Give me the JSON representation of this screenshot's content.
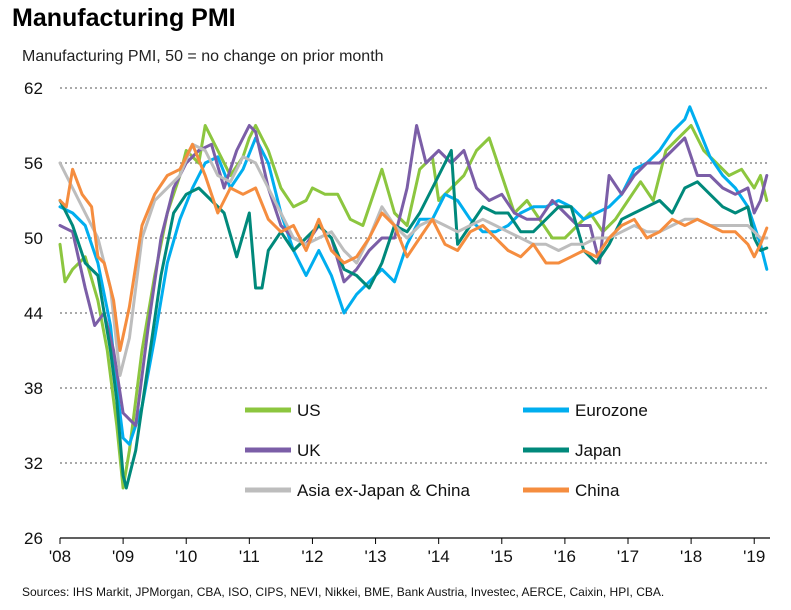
{
  "chart_data": {
    "type": "line",
    "title": "Manufacturing PMI",
    "subtitle": "Manufacturing PMI, 50 = no change on prior month",
    "source": "Sources: IHS Markit, JPMorgan, CBA, ISO, CIPS, NEVI, Nikkei, BME, Bank Austria, Investec, AERCE, Caixin, HPI, CBA.",
    "ylim": [
      26,
      62
    ],
    "yticks": [
      26,
      32,
      38,
      44,
      50,
      56,
      62
    ],
    "xlim": [
      2008.0,
      2019.25
    ],
    "xticks": [
      {
        "value": 2008,
        "label": "'08"
      },
      {
        "value": 2009,
        "label": "'09"
      },
      {
        "value": 2010,
        "label": "'10"
      },
      {
        "value": 2011,
        "label": "'11"
      },
      {
        "value": 2012,
        "label": "'12"
      },
      {
        "value": 2013,
        "label": "'13"
      },
      {
        "value": 2014,
        "label": "'14"
      },
      {
        "value": 2015,
        "label": "'15"
      },
      {
        "value": 2016,
        "label": "'16"
      },
      {
        "value": 2017,
        "label": "'17"
      },
      {
        "value": 2018,
        "label": "'18"
      },
      {
        "value": 2019,
        "label": "'19"
      }
    ],
    "grid": "horizontal",
    "legend_position": "inside, lower center",
    "series": [
      {
        "name": "US",
        "color": "#8cc63f",
        "x": [
          2008.0,
          2008.08,
          2008.2,
          2008.4,
          2008.6,
          2008.75,
          2008.9,
          2009.0,
          2009.1,
          2009.3,
          2009.5,
          2009.7,
          2009.9,
          2010.0,
          2010.2,
          2010.3,
          2010.5,
          2010.7,
          2010.9,
          2011.0,
          2011.1,
          2011.3,
          2011.5,
          2011.7,
          2011.9,
          2012.0,
          2012.2,
          2012.4,
          2012.6,
          2012.8,
          2013.0,
          2013.1,
          2013.3,
          2013.5,
          2013.7,
          2013.9,
          2014.0,
          2014.2,
          2014.4,
          2014.6,
          2014.8,
          2015.0,
          2015.2,
          2015.4,
          2015.6,
          2015.8,
          2016.0,
          2016.2,
          2016.4,
          2016.6,
          2016.8,
          2017.0,
          2017.2,
          2017.4,
          2017.6,
          2017.8,
          2018.0,
          2018.2,
          2018.4,
          2018.6,
          2018.8,
          2019.0,
          2019.1,
          2019.2
        ],
        "values": [
          49.5,
          46.5,
          47.5,
          48.5,
          45,
          41,
          35,
          30,
          33,
          41,
          47,
          52,
          55,
          57,
          56,
          59,
          57,
          55,
          56.5,
          58,
          59,
          57,
          54,
          52.5,
          53,
          54,
          53.5,
          53.5,
          51.5,
          51,
          54,
          55.5,
          52,
          51,
          55.5,
          56.5,
          53,
          54,
          55,
          57,
          58,
          55,
          52,
          53,
          51.5,
          50,
          50,
          51,
          52,
          50.5,
          51.5,
          53,
          54.5,
          53,
          57,
          58,
          59,
          57,
          56,
          55,
          55.5,
          54,
          55,
          53
        ]
      },
      {
        "name": "Eurozone",
        "color": "#00aeef",
        "x": [
          2008.0,
          2008.2,
          2008.4,
          2008.6,
          2008.8,
          2008.9,
          2009.0,
          2009.1,
          2009.3,
          2009.5,
          2009.7,
          2009.9,
          2010.1,
          2010.3,
          2010.5,
          2010.7,
          2010.9,
          2011.1,
          2011.3,
          2011.5,
          2011.7,
          2011.9,
          2012.1,
          2012.3,
          2012.5,
          2012.7,
          2012.9,
          2013.1,
          2013.3,
          2013.5,
          2013.7,
          2013.9,
          2014.1,
          2014.3,
          2014.5,
          2014.7,
          2014.9,
          2015.1,
          2015.3,
          2015.5,
          2015.7,
          2015.9,
          2016.1,
          2016.3,
          2016.5,
          2016.7,
          2016.9,
          2017.1,
          2017.3,
          2017.5,
          2017.7,
          2017.9,
          2017.98,
          2018.1,
          2018.3,
          2018.5,
          2018.7,
          2018.9,
          2019.0,
          2019.1,
          2019.2
        ],
        "values": [
          52.5,
          52,
          51,
          48,
          43,
          38,
          34,
          33.5,
          36.5,
          42,
          48,
          51.5,
          54,
          56,
          56.5,
          54,
          55.5,
          58,
          56,
          52,
          49,
          47,
          49,
          47,
          44,
          45.5,
          46.5,
          47.5,
          46.5,
          49.5,
          51.5,
          51.5,
          53.5,
          53,
          51.5,
          50.5,
          50.5,
          51,
          52,
          52.5,
          52.5,
          53,
          52.5,
          51.5,
          52,
          52.5,
          53.5,
          55.5,
          56,
          57,
          58.5,
          59.5,
          60.5,
          59,
          56.5,
          55,
          54,
          52.5,
          51,
          49.5,
          47.5
        ]
      },
      {
        "name": "UK",
        "color": "#7b5ea7",
        "x": [
          2008.0,
          2008.2,
          2008.4,
          2008.55,
          2008.7,
          2008.85,
          2009.0,
          2009.1,
          2009.2,
          2009.4,
          2009.6,
          2009.8,
          2010.0,
          2010.2,
          2010.4,
          2010.6,
          2010.8,
          2011.0,
          2011.1,
          2011.3,
          2011.5,
          2011.7,
          2011.9,
          2012.1,
          2012.3,
          2012.5,
          2012.7,
          2012.9,
          2013.1,
          2013.3,
          2013.5,
          2013.65,
          2013.8,
          2014.0,
          2014.2,
          2014.4,
          2014.6,
          2014.8,
          2015.0,
          2015.2,
          2015.4,
          2015.6,
          2015.8,
          2016.0,
          2016.2,
          2016.4,
          2016.55,
          2016.7,
          2016.9,
          2017.1,
          2017.3,
          2017.5,
          2017.7,
          2017.9,
          2018.1,
          2018.3,
          2018.5,
          2018.7,
          2018.9,
          2019.0,
          2019.1,
          2019.2
        ],
        "values": [
          51,
          50.5,
          46,
          43,
          44,
          41,
          36,
          35.5,
          35,
          43,
          50,
          54,
          56,
          57,
          57.5,
          54,
          57,
          59,
          58.5,
          54,
          51,
          50,
          49.5,
          51,
          50,
          46.5,
          47.5,
          49,
          50,
          50,
          54,
          59,
          56,
          57,
          56,
          57,
          54,
          53,
          53.5,
          52,
          51.5,
          51.5,
          53,
          52,
          51,
          51,
          48,
          55,
          53.5,
          55,
          56,
          56,
          57,
          58,
          55,
          55,
          54,
          53.5,
          54,
          52,
          53,
          55
        ]
      },
      {
        "name": "Japan",
        "color": "#00897b",
        "x": [
          2008.0,
          2008.2,
          2008.4,
          2008.6,
          2008.8,
          2008.9,
          2009.0,
          2009.05,
          2009.2,
          2009.4,
          2009.6,
          2009.8,
          2010.0,
          2010.2,
          2010.4,
          2010.6,
          2010.8,
          2011.0,
          2011.1,
          2011.2,
          2011.3,
          2011.5,
          2011.7,
          2011.9,
          2012.1,
          2012.3,
          2012.5,
          2012.7,
          2012.9,
          2013.1,
          2013.3,
          2013.5,
          2013.7,
          2013.9,
          2014.1,
          2014.2,
          2014.3,
          2014.5,
          2014.7,
          2014.9,
          2015.1,
          2015.3,
          2015.5,
          2015.7,
          2015.9,
          2016.1,
          2016.3,
          2016.5,
          2016.7,
          2016.9,
          2017.1,
          2017.3,
          2017.5,
          2017.7,
          2017.9,
          2018.1,
          2018.3,
          2018.5,
          2018.7,
          2018.9,
          2019.0,
          2019.1,
          2019.2
        ],
        "values": [
          53,
          51,
          48,
          47,
          41,
          37,
          31,
          30,
          33,
          40,
          47,
          52,
          53.5,
          54,
          53,
          52,
          48.5,
          52,
          46,
          46,
          49,
          50.5,
          49,
          50,
          51,
          50,
          47.5,
          47,
          46,
          48,
          51,
          50.5,
          52,
          54,
          56,
          57,
          49.5,
          51,
          52.5,
          52,
          52,
          50.5,
          50.5,
          51.5,
          52.5,
          52.5,
          49,
          48,
          49.5,
          51.5,
          52,
          52.5,
          53,
          52,
          54,
          54.5,
          53.5,
          52.5,
          52,
          52.5,
          50,
          49,
          49.2
        ]
      },
      {
        "name": "Asia ex-Japan & China",
        "color": "#bdbdbd",
        "x": [
          2008.0,
          2008.2,
          2008.4,
          2008.6,
          2008.8,
          2008.95,
          2009.1,
          2009.3,
          2009.5,
          2009.7,
          2009.9,
          2010.1,
          2010.3,
          2010.5,
          2010.7,
          2010.9,
          2011.1,
          2011.3,
          2011.5,
          2011.7,
          2011.9,
          2012.1,
          2012.3,
          2012.5,
          2012.7,
          2012.9,
          2013.1,
          2013.3,
          2013.5,
          2013.7,
          2013.9,
          2014.1,
          2014.3,
          2014.5,
          2014.7,
          2014.9,
          2015.1,
          2015.3,
          2015.5,
          2015.7,
          2015.9,
          2016.1,
          2016.3,
          2016.5,
          2016.7,
          2016.9,
          2017.1,
          2017.3,
          2017.5,
          2017.7,
          2017.9,
          2018.1,
          2018.3,
          2018.5,
          2018.7,
          2018.9,
          2019.0,
          2019.1,
          2019.2
        ],
        "values": [
          56,
          54,
          52,
          50,
          46,
          39,
          42,
          50,
          53,
          54,
          55,
          57.5,
          57,
          55,
          54.5,
          56.5,
          56,
          54,
          52,
          50,
          49.5,
          50,
          50.5,
          49,
          48,
          50,
          52.5,
          51,
          50,
          51,
          51.5,
          51,
          50.5,
          51,
          51.5,
          51,
          50.5,
          50,
          49.5,
          49.5,
          49,
          49.5,
          49.5,
          50,
          50,
          50.5,
          51,
          50.5,
          50.5,
          51,
          51.5,
          51.5,
          51,
          51,
          51,
          51,
          50.5,
          50,
          50
        ]
      },
      {
        "name": "China",
        "color": "#f58d3f",
        "x": [
          2008.0,
          2008.1,
          2008.2,
          2008.35,
          2008.5,
          2008.6,
          2008.7,
          2008.85,
          2008.95,
          2009.1,
          2009.3,
          2009.5,
          2009.7,
          2009.9,
          2010.1,
          2010.3,
          2010.5,
          2010.7,
          2010.9,
          2011.1,
          2011.3,
          2011.5,
          2011.7,
          2011.9,
          2012.1,
          2012.3,
          2012.5,
          2012.7,
          2012.9,
          2013.1,
          2013.3,
          2013.5,
          2013.7,
          2013.9,
          2014.1,
          2014.3,
          2014.5,
          2014.7,
          2014.9,
          2015.1,
          2015.3,
          2015.5,
          2015.7,
          2015.9,
          2016.1,
          2016.3,
          2016.5,
          2016.7,
          2016.9,
          2017.1,
          2017.3,
          2017.5,
          2017.7,
          2017.9,
          2018.1,
          2018.3,
          2018.5,
          2018.7,
          2018.9,
          2019.0,
          2019.1,
          2019.2
        ],
        "values": [
          53,
          52.5,
          55.5,
          53.5,
          52.5,
          48.5,
          48,
          45,
          41,
          44.5,
          51,
          53.5,
          55,
          55.5,
          57.5,
          55,
          52,
          54,
          53.5,
          54,
          51.5,
          50.5,
          51,
          49,
          51.5,
          49,
          48,
          48.5,
          50,
          52,
          51,
          48.5,
          50,
          51.5,
          49.5,
          49,
          50.5,
          51,
          50,
          49,
          48.5,
          49.5,
          48,
          48,
          48.5,
          49,
          48.5,
          50,
          51,
          51.5,
          50,
          50.5,
          51.5,
          51,
          51.5,
          51,
          50.5,
          50.5,
          49.5,
          48.5,
          49.5,
          50.8
        ]
      }
    ]
  }
}
